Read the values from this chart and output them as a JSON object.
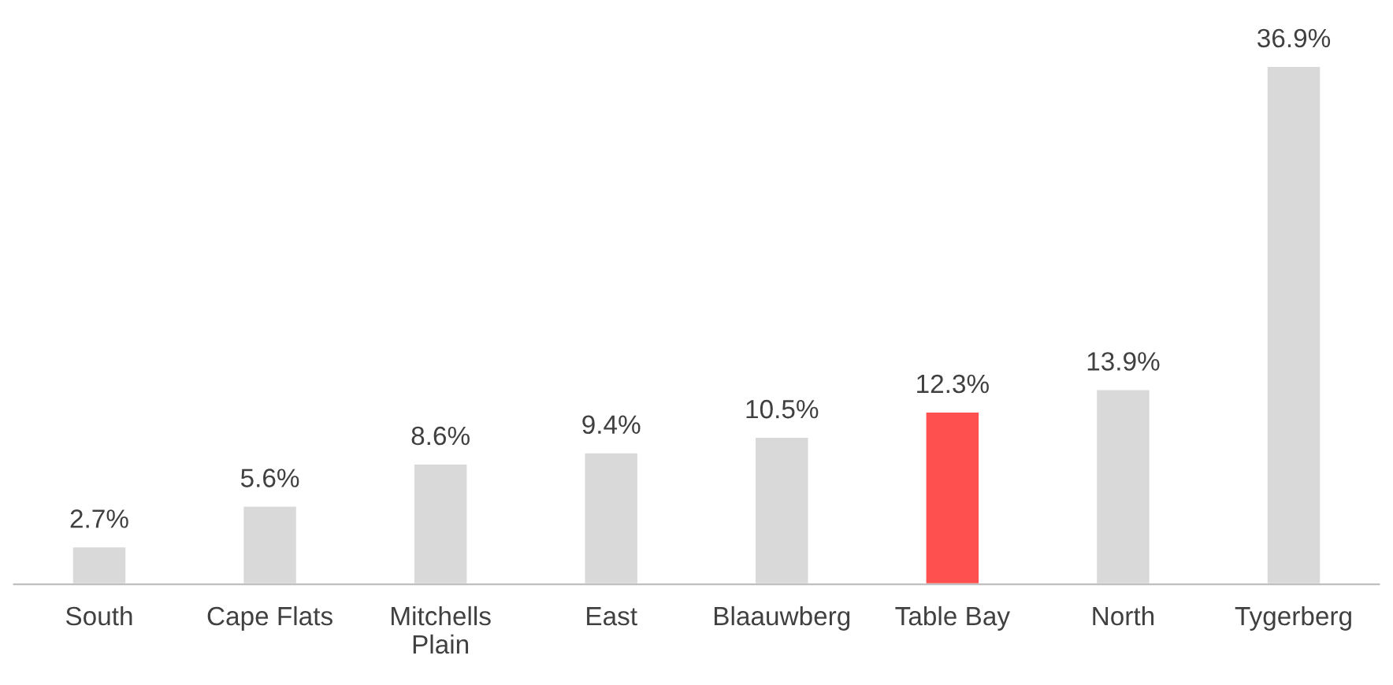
{
  "chart_data": {
    "type": "bar",
    "categories": [
      "South",
      "Cape Flats",
      "Mitchells\nPlain",
      "East",
      "Blaauwberg",
      "Table Bay",
      "North",
      "Tygerberg"
    ],
    "values": [
      2.7,
      5.6,
      8.6,
      9.4,
      10.5,
      12.3,
      13.9,
      36.9
    ],
    "colors": [
      "#d9d9d9",
      "#d9d9d9",
      "#d9d9d9",
      "#d9d9d9",
      "#d9d9d9",
      "#ff5050",
      "#d9d9d9",
      "#d9d9d9"
    ],
    "value_labels": [
      "2.7%",
      "5.6%",
      "8.6%",
      "9.4%",
      "10.5%",
      "12.3%",
      "13.9%",
      "36.9%"
    ],
    "grid": false,
    "legend": false
  }
}
